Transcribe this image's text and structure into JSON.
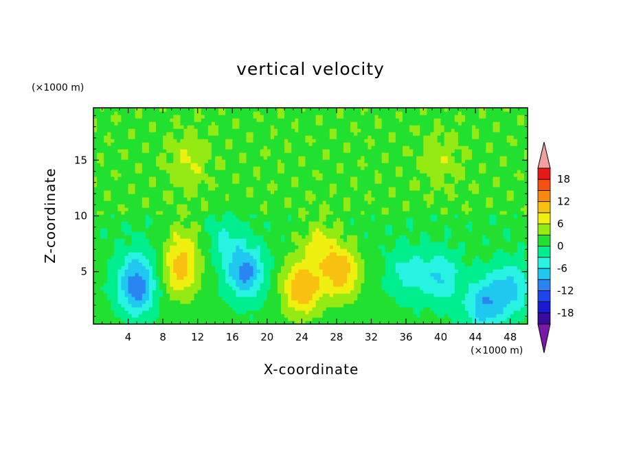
{
  "chart_data": {
    "type": "heatmap",
    "title": "vertical velocity",
    "xlabel": "X-coordinate",
    "ylabel": "Z-coordinate",
    "x_unit": "(×1000 m)",
    "y_unit": "(×1000 m)",
    "xlim": [
      0,
      50
    ],
    "ylim": [
      0.3,
      19.7
    ],
    "x_ticks": [
      4,
      8,
      12,
      16,
      20,
      24,
      28,
      32,
      36,
      40,
      44,
      48
    ],
    "y_ticks": [
      5,
      10,
      15
    ],
    "colorbar": {
      "levels": [
        -21,
        -18,
        -15,
        -12,
        -9,
        -6,
        -3,
        0,
        3,
        6,
        9,
        12,
        15,
        18,
        21
      ],
      "tick_labels": [
        -18,
        -12,
        -6,
        0,
        6,
        12,
        18
      ],
      "colors": [
        "#7a18a8",
        "#3a0a9a",
        "#1a1ad2",
        "#1e44ee",
        "#2a84f2",
        "#20c8f0",
        "#28f2e2",
        "#00ee8e",
        "#22e030",
        "#96ea14",
        "#f0f010",
        "#f8c010",
        "#f88810",
        "#f45010",
        "#e81818",
        "#f0a0a0"
      ],
      "extend": "both"
    },
    "features": [
      {
        "x": 5.0,
        "z": 3.5,
        "w": -11
      },
      {
        "x": 5.0,
        "z": 6.0,
        "w": -3
      },
      {
        "x": 10.0,
        "z": 5.0,
        "w": 8
      },
      {
        "x": 10.5,
        "z": 7.5,
        "w": 4
      },
      {
        "x": 17.5,
        "z": 5.0,
        "w": -11
      },
      {
        "x": 15.0,
        "z": 8.0,
        "w": -4
      },
      {
        "x": 24.0,
        "z": 3.5,
        "w": 11
      },
      {
        "x": 28.5,
        "z": 5.0,
        "w": 10
      },
      {
        "x": 26.0,
        "z": 7.5,
        "w": 5
      },
      {
        "x": 36.0,
        "z": 5.0,
        "w": -5
      },
      {
        "x": 40.0,
        "z": 4.5,
        "w": -7
      },
      {
        "x": 45.0,
        "z": 2.0,
        "w": -9
      },
      {
        "x": 48.0,
        "z": 3.5,
        "w": -8
      },
      {
        "x": 11.0,
        "z": 15.0,
        "w": 4
      },
      {
        "x": 40.0,
        "z": 15.0,
        "w": 3
      }
    ]
  }
}
